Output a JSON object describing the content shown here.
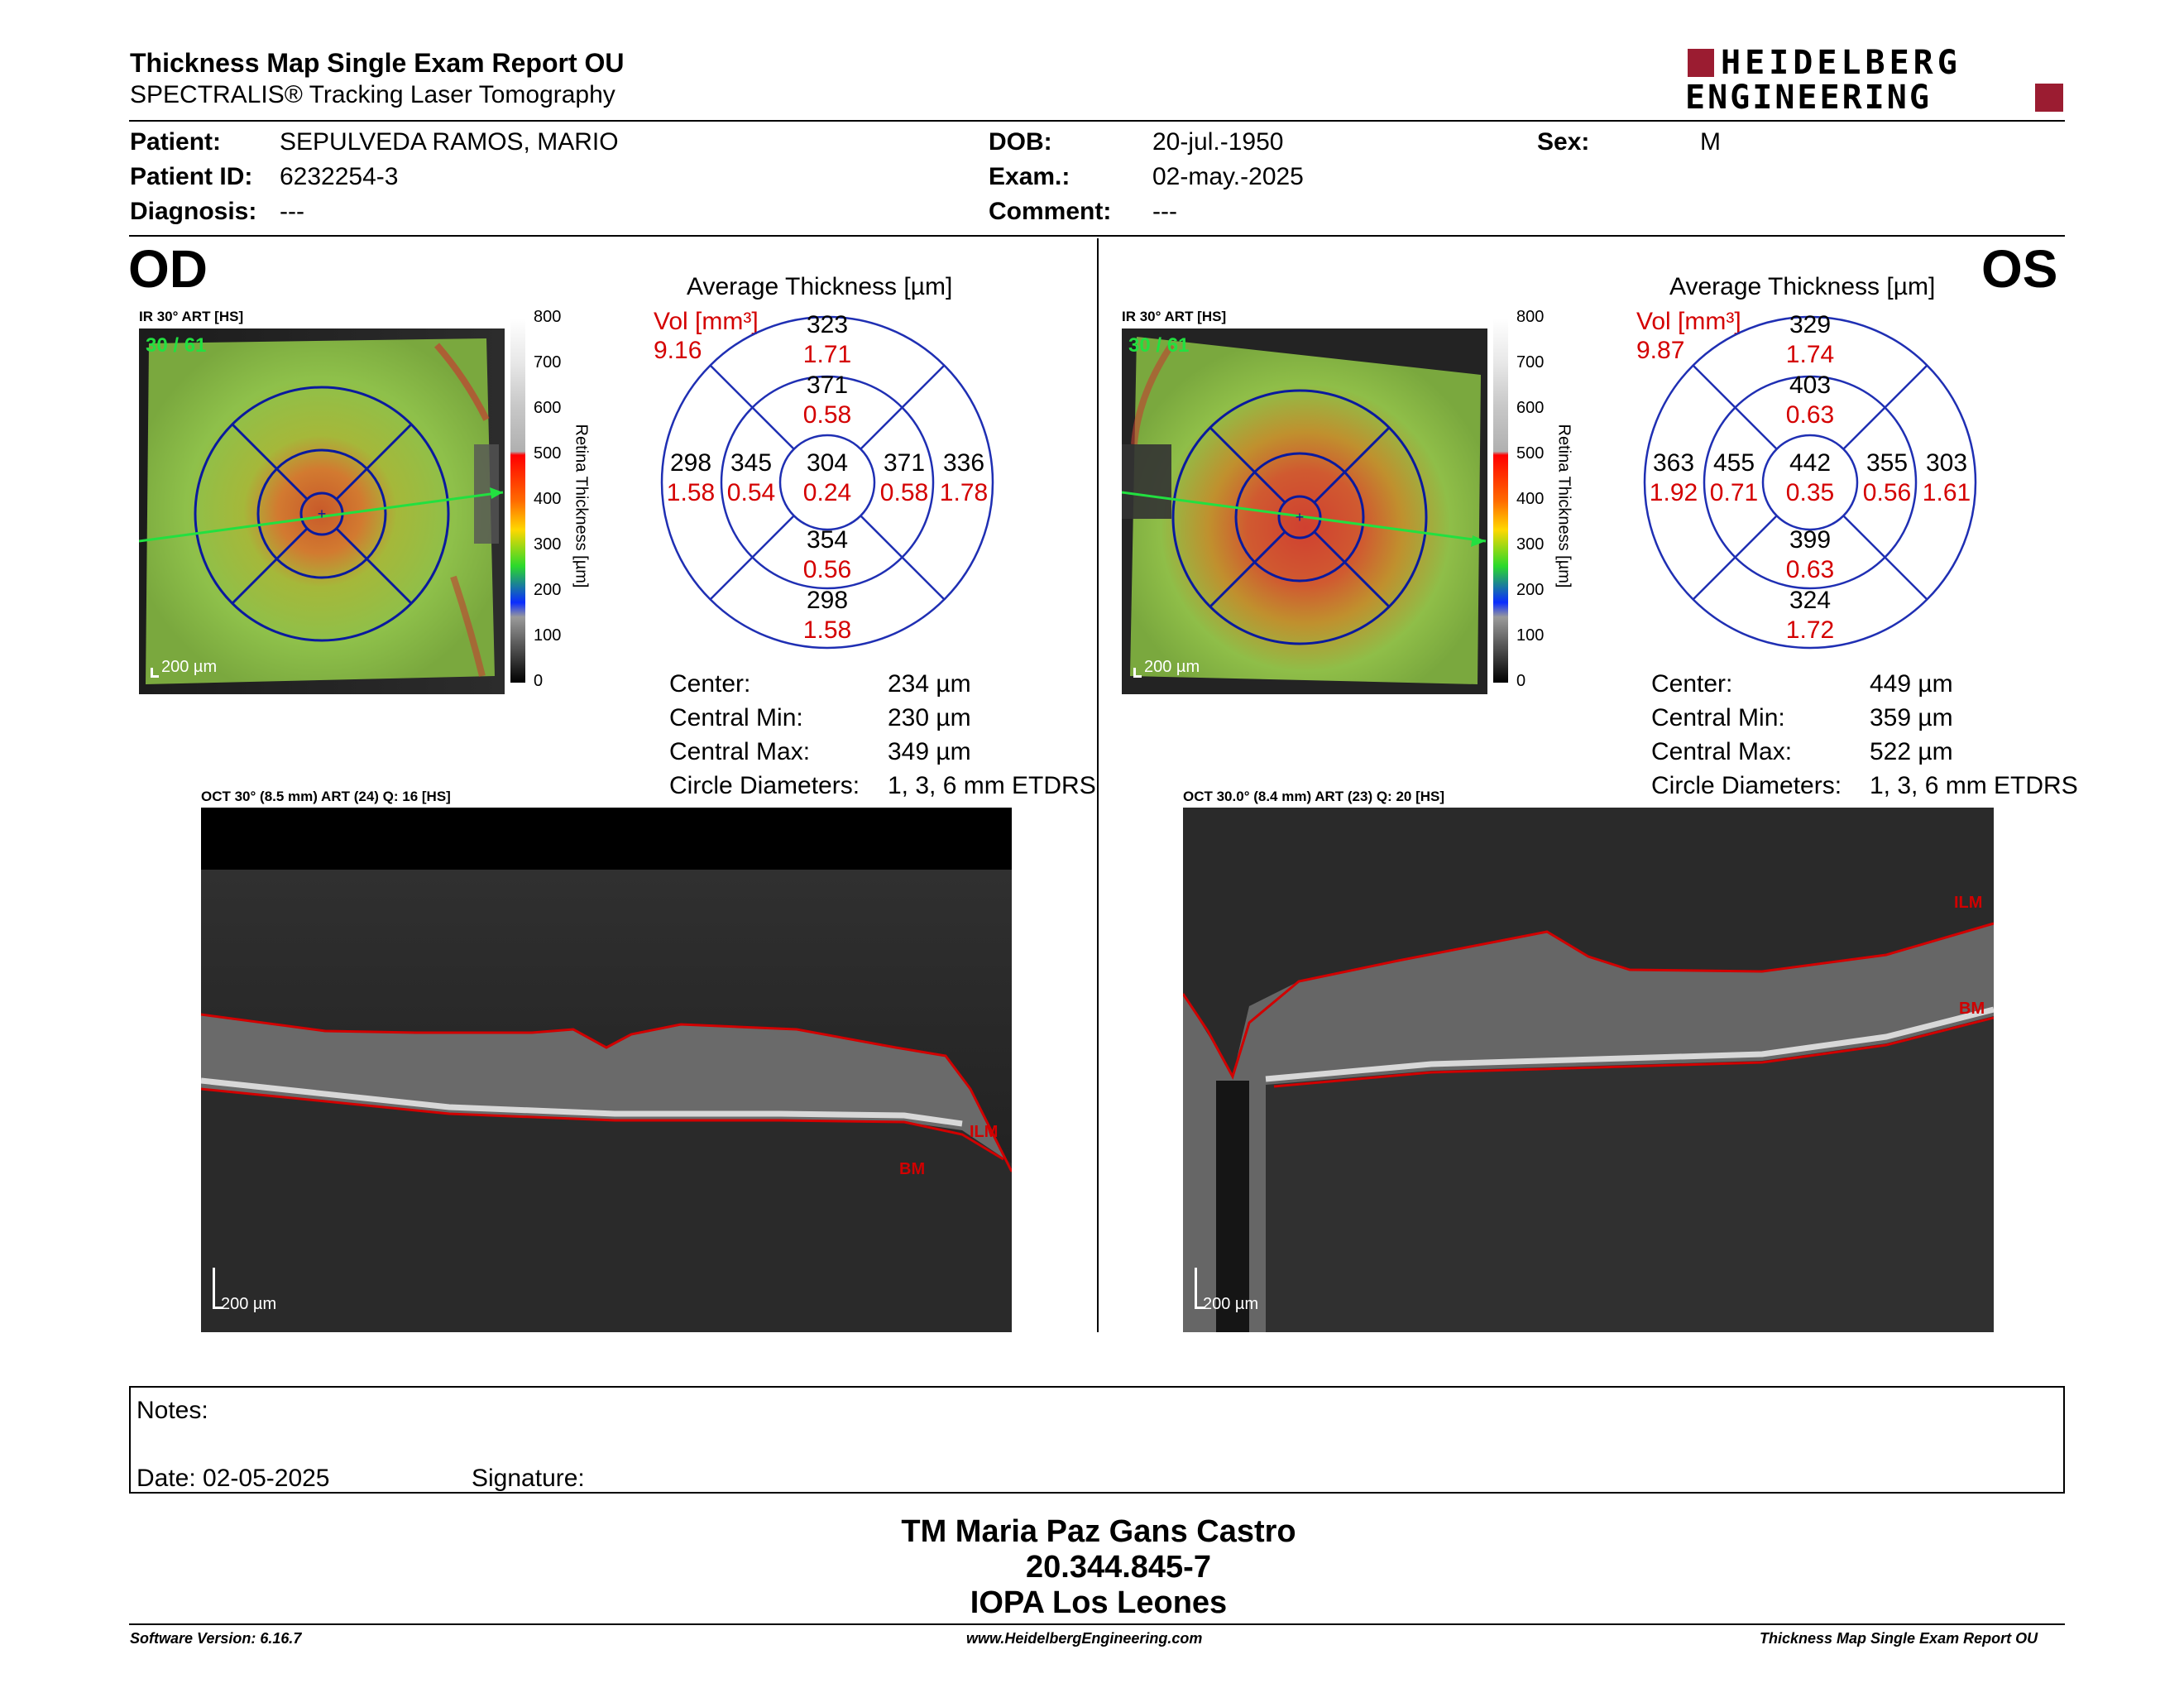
{
  "report": {
    "title": "Thickness Map Single Exam Report OU",
    "subtitle": "SPECTRALIS® Tracking Laser Tomography",
    "logo_line1": "HEIDELBERG",
    "logo_line2": "ENGINEERING",
    "brand_color": "#9b1c31"
  },
  "patient": {
    "patient_label": "Patient:",
    "patient_value": "SEPULVEDA RAMOS, MARIO",
    "id_label": "Patient ID:",
    "id_value": "6232254-3",
    "diagnosis_label": "Diagnosis:",
    "diagnosis_value": "---",
    "dob_label": "DOB:",
    "dob_value": "20-jul.-1950",
    "exam_label": "Exam.:",
    "exam_value": "02-may.-2025",
    "comment_label": "Comment:",
    "comment_value": "---",
    "sex_label": "Sex:",
    "sex_value": "M"
  },
  "od": {
    "eye": "OD",
    "ir_label": "IR 30° ART [HS]",
    "frame": "30 / 61",
    "scale": "200 µm",
    "colorbar_ticks": [
      "800",
      "700",
      "600",
      "500",
      "400",
      "300",
      "200",
      "100",
      "0"
    ],
    "colorbar_title": "Retina Thickness [µm]",
    "avg_title": "Average Thickness [µm]",
    "vol_label": "Vol [mm³]",
    "vol_value": "9.16",
    "grid": {
      "center": {
        "t": "304",
        "v": "0.24"
      },
      "inner_sup": {
        "t": "371",
        "v": "0.58"
      },
      "inner_inf": {
        "t": "354",
        "v": "0.56"
      },
      "inner_nasal_left": {
        "t": "345",
        "v": "0.54"
      },
      "inner_temp_right": {
        "t": "371",
        "v": "0.58"
      },
      "outer_sup": {
        "t": "323",
        "v": "1.71"
      },
      "outer_inf": {
        "t": "298",
        "v": "1.58"
      },
      "outer_left": {
        "t": "298",
        "v": "1.58"
      },
      "outer_right": {
        "t": "336",
        "v": "1.78"
      }
    },
    "stats": [
      {
        "label": "Center:",
        "value": "234 µm"
      },
      {
        "label": "Central Min:",
        "value": "230 µm"
      },
      {
        "label": "Central Max:",
        "value": "349 µm"
      },
      {
        "label": "Circle Diameters:",
        "value": "1, 3, 6 mm ETDRS"
      }
    ],
    "oct_label": "OCT 30° (8.5 mm) ART (24) Q: 16 [HS]",
    "ilm": "ILM",
    "bm": "BM",
    "oct_scale": "200 µm"
  },
  "os": {
    "eye": "OS",
    "ir_label": "IR 30° ART [HS]",
    "frame": "30 / 61",
    "scale": "200 µm",
    "colorbar_ticks": [
      "800",
      "700",
      "600",
      "500",
      "400",
      "300",
      "200",
      "100",
      "0"
    ],
    "colorbar_title": "Retina Thickness [µm]",
    "avg_title": "Average Thickness [µm]",
    "vol_label": "Vol [mm³]",
    "vol_value": "9.87",
    "grid": {
      "center": {
        "t": "442",
        "v": "0.35"
      },
      "inner_sup": {
        "t": "403",
        "v": "0.63"
      },
      "inner_inf": {
        "t": "399",
        "v": "0.63"
      },
      "inner_nasal_left": {
        "t": "455",
        "v": "0.71"
      },
      "inner_temp_right": {
        "t": "355",
        "v": "0.56"
      },
      "outer_sup": {
        "t": "329",
        "v": "1.74"
      },
      "outer_inf": {
        "t": "324",
        "v": "1.72"
      },
      "outer_left": {
        "t": "363",
        "v": "1.92"
      },
      "outer_right": {
        "t": "303",
        "v": "1.61"
      }
    },
    "stats": [
      {
        "label": "Center:",
        "value": "449 µm"
      },
      {
        "label": "Central Min:",
        "value": "359 µm"
      },
      {
        "label": "Central Max:",
        "value": "522 µm"
      },
      {
        "label": "Circle Diameters:",
        "value": "1, 3, 6 mm ETDRS"
      }
    ],
    "oct_label": "OCT 30.0° (8.4 mm) ART (23) Q: 20 [HS]",
    "ilm": "ILM",
    "bm": "BM",
    "oct_scale": "200 µm"
  },
  "notes": {
    "notes_label": "Notes:",
    "date_label": "Date: 02-05-2025",
    "signature_label": "Signature:"
  },
  "signer": {
    "name": "TM Maria Paz Gans Castro",
    "rut": "20.344.845-7",
    "place": "IOPA Los Leones"
  },
  "footer": {
    "version": "Software Version: 6.16.7",
    "url": "www.HeidelbergEngineering.com",
    "report": "Thickness Map Single Exam Report OU"
  }
}
